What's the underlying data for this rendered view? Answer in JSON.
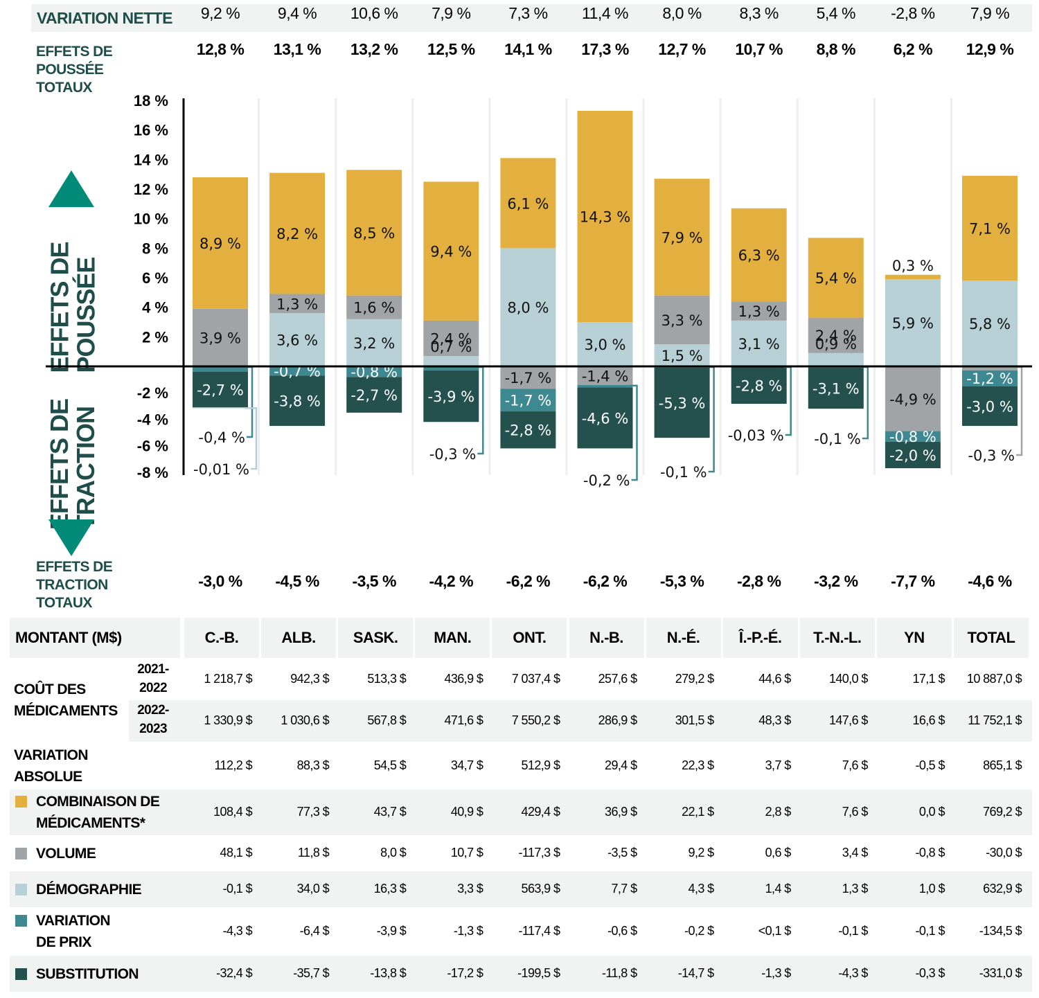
{
  "colors": {
    "drug_mix": "#e3b040",
    "volume": "#a0a4a6",
    "demographics": "#b7d0d6",
    "price_change": "#3e8891",
    "substitution": "#24514e",
    "label_dark_green": "#1f4d4a",
    "arrow_teal": "#008a77",
    "row_shade": "#f1f3f3"
  },
  "header": {
    "net_change_label": "VARIATION NETTE",
    "push_totals_label_lines": [
      "EFFETS DE",
      "POUSSÉE",
      "TOTAUX"
    ],
    "pull_totals_label_lines": [
      "EFFETS DE",
      "TRACTION",
      "TOTAUX"
    ],
    "push_axis_label_lines": [
      "EFFETS DE",
      "POUSSÉE"
    ],
    "pull_axis_label_lines": [
      "EFFETS DE",
      "TRACTION"
    ]
  },
  "jurisdictions": [
    "C.-B.",
    "ALB.",
    "SASK.",
    "MAN.",
    "ONT.",
    "N.-B.",
    "N.-É.",
    "Î.-P.-É.",
    "T.-N.-L.",
    "YN",
    "TOTAL"
  ],
  "net_change": [
    "9,2 %",
    "9,4 %",
    "10,6 %",
    "7,9 %",
    "7,3 %",
    "11,4 %",
    "8,0 %",
    "8,3 %",
    "5,4 %",
    "-2,8 %",
    "7,9 %"
  ],
  "push_totals": [
    "12,8 %",
    "13,1 %",
    "13,2 %",
    "12,5 %",
    "14,1 %",
    "17,3 %",
    "12,7 %",
    "10,7 %",
    "8,8 %",
    "6,2 %",
    "12,9 %"
  ],
  "pull_totals": [
    "-3,0 %",
    "-4,5 %",
    "-3,5 %",
    "-4,2 %",
    "-6,2 %",
    "-6,2 %",
    "-5,3 %",
    "-2,8 %",
    "-3,2 %",
    "-7,7 %",
    "-4,6 %"
  ],
  "chart_data": {
    "type": "bar",
    "stacked": true,
    "title": "",
    "xlabel": "",
    "ylabel": "",
    "ylim": [
      -8,
      18
    ],
    "y_ticks": [
      18,
      16,
      14,
      12,
      10,
      8,
      6,
      4,
      2,
      -2,
      -4,
      -6,
      -8
    ],
    "y_tick_labels": [
      "18 %",
      "16 %",
      "14 %",
      "12 %",
      "10 %",
      "8 %",
      "6 %",
      "4 %",
      "2 %",
      "-2 %",
      "-4 %",
      "-6 %",
      "-8 %"
    ],
    "grid": false,
    "categories": [
      "C.-B.",
      "ALB.",
      "SASK.",
      "MAN.",
      "ONT.",
      "N.-B.",
      "N.-É.",
      "Î.-P.-É.",
      "T.-N.-L.",
      "YN",
      "TOTAL"
    ],
    "series": [
      {
        "name": "Démographie",
        "key": "demographics",
        "values": [
          -0.01,
          3.6,
          3.2,
          0.7,
          8.0,
          3.0,
          1.5,
          3.1,
          0.9,
          5.9,
          5.8
        ],
        "labels": [
          "-0,01 %",
          "3,6 %",
          "3,2 %",
          "0,7 %",
          "8,0 %",
          "3,0 %",
          "1,5 %",
          "3,1 %",
          "0,9 %",
          "5,9 %",
          "5,8 %"
        ]
      },
      {
        "name": "Volume",
        "key": "volume",
        "values": [
          3.9,
          1.3,
          1.6,
          2.4,
          -1.7,
          -1.4,
          3.3,
          1.3,
          2.4,
          -4.9,
          -0.3
        ],
        "labels": [
          "3,9 %",
          "1,3 %",
          "1,6 %",
          "2,4 %",
          "-1,7 %",
          "-1,4 %",
          "3,3 %",
          "1,3 %",
          "2,4 %",
          "-4,9 %",
          "-0,3 %"
        ]
      },
      {
        "name": "Combinaison de médicaments",
        "key": "drug_mix",
        "values": [
          8.9,
          8.2,
          8.5,
          9.4,
          6.1,
          14.3,
          7.9,
          6.3,
          5.4,
          0.3,
          7.1
        ],
        "labels": [
          "8,9 %",
          "8,2 %",
          "8,5 %",
          "9,4 %",
          "6,1 %",
          "14,3 %",
          "7,9 %",
          "6,3 %",
          "5,4 %",
          "0,3 %",
          "7,1 %"
        ]
      },
      {
        "name": "Variation de prix",
        "key": "price_change",
        "values": [
          -0.4,
          -0.7,
          -0.8,
          -0.3,
          -1.7,
          -0.2,
          -0.1,
          -0.03,
          -0.1,
          -0.8,
          -1.2
        ],
        "labels": [
          "-0,4 %",
          "-0,7 %",
          "-0,8 %",
          "-0,3 %",
          "-1,7 %",
          "-0,2 %",
          "-0,1 %",
          "-0,03 %",
          "-0,1 %",
          "-0,8 %",
          "-1,2 %"
        ]
      },
      {
        "name": "Substitution",
        "key": "substitution",
        "values": [
          -2.7,
          -3.8,
          -2.7,
          -3.9,
          -2.8,
          -4.6,
          -5.3,
          -2.8,
          -3.1,
          -2.0,
          -3.0
        ],
        "labels": [
          "-2,7 %",
          "-3,8 %",
          "-2,7 %",
          "-3,9 %",
          "-2,8 %",
          "-4,6 %",
          "-5,3 %",
          "-2,8 %",
          "-3,1 %",
          "-2,0 %",
          "-3,0 %"
        ]
      }
    ],
    "callouts": [
      {
        "category": "C.-B.",
        "series": "price_change",
        "label": "-0,4 %"
      },
      {
        "category": "C.-B.",
        "series": "demographics",
        "label": "-0,01 %"
      },
      {
        "category": "MAN.",
        "series": "price_change",
        "label": "-0,3 %"
      },
      {
        "category": "N.-B.",
        "series": "price_change",
        "label": "-0,2 %"
      },
      {
        "category": "N.-É.",
        "series": "price_change",
        "label": "-0,1 %"
      },
      {
        "category": "Î.-P.-É.",
        "series": "price_change",
        "label": "-0,03 %"
      },
      {
        "category": "T.-N.-L.",
        "series": "price_change",
        "label": "-0,1 %"
      },
      {
        "category": "TOTAL",
        "series": "volume",
        "label": "-0,3 %"
      }
    ],
    "legend": [
      {
        "key": "drug_mix",
        "label": "Combinaison de médicaments*"
      },
      {
        "key": "volume",
        "label": "Volume"
      },
      {
        "key": "demographics",
        "label": "Démographie"
      },
      {
        "key": "price_change",
        "label": "Variation de prix"
      },
      {
        "key": "substitution",
        "label": "Substitution"
      }
    ],
    "legend_position": "bottom (in table)"
  },
  "table": {
    "corner_label": "MONTANT (M$)",
    "columns": [
      "C.-B.",
      "ALB.",
      "SASK.",
      "MAN.",
      "ONT.",
      "N.-B.",
      "N.-É.",
      "Î.-P.-É.",
      "T.-N.-L.",
      "YN",
      "TOTAL"
    ],
    "drug_cost_label_lines": [
      "COÛT DES",
      "MÉDICAMENTS"
    ],
    "rows": [
      {
        "key": "cost_2122",
        "year_lines": [
          "2021-",
          "2022"
        ],
        "values": [
          "1 218,7 $",
          "942,3 $",
          "513,3 $",
          "436,9 $",
          "7 037,4 $",
          "257,6 $",
          "279,2 $",
          "44,6 $",
          "140,0 $",
          "17,1 $",
          "10 887,0 $"
        ]
      },
      {
        "key": "cost_2223",
        "year_lines": [
          "2022-",
          "2023"
        ],
        "values": [
          "1 330,9 $",
          "1 030,6 $",
          "567,8 $",
          "471,6 $",
          "7 550,2 $",
          "286,9 $",
          "301,5 $",
          "48,3 $",
          "147,6 $",
          "16,6 $",
          "11 752,1 $"
        ]
      },
      {
        "key": "abs_change",
        "label_lines": [
          "VARIATION",
          "ABSOLUE"
        ],
        "values": [
          "112,2 $",
          "88,3 $",
          "54,5 $",
          "34,7 $",
          "512,9 $",
          "29,4 $",
          "22,3 $",
          "3,7 $",
          "7,6 $",
          "-0,5 $",
          "865,1 $"
        ]
      },
      {
        "key": "drug_mix",
        "label_lines": [
          "COMBINAISON DE",
          "MÉDICAMENTS*"
        ],
        "values": [
          "108,4 $",
          "77,3 $",
          "43,7 $",
          "40,9 $",
          "429,4 $",
          "36,9 $",
          "22,1 $",
          "2,8 $",
          "7,6 $",
          "0,0 $",
          "769,2 $"
        ]
      },
      {
        "key": "volume",
        "label_lines": [
          "VOLUME"
        ],
        "values": [
          "48,1 $",
          "11,8 $",
          "8,0 $",
          "10,7 $",
          "-117,3 $",
          "-3,5 $",
          "9,2 $",
          "0,6 $",
          "3,4 $",
          "-0,8 $",
          "-30,0 $"
        ]
      },
      {
        "key": "demographics",
        "label_lines": [
          "DÉMOGRAPHIE"
        ],
        "values": [
          "-0,1 $",
          "34,0 $",
          "16,3 $",
          "3,3 $",
          "563,9 $",
          "7,7 $",
          "4,3 $",
          "1,4 $",
          "1,3 $",
          "1,0 $",
          "632,9 $"
        ]
      },
      {
        "key": "price_change",
        "label_lines": [
          "VARIATION",
          "DE PRIX"
        ],
        "values": [
          "-4,3 $",
          "-6,4 $",
          "-3,9 $",
          "-1,3 $",
          "-117,4 $",
          "-0,6 $",
          "-0,2 $",
          "<0,1 $",
          "-0,1 $",
          "-0,1 $",
          "-134,5 $"
        ]
      },
      {
        "key": "substitution",
        "label_lines": [
          "SUBSTITUTION"
        ],
        "values": [
          "-32,4 $",
          "-35,7 $",
          "-13,8 $",
          "-17,2 $",
          "-199,5 $",
          "-11,8 $",
          "-14,7 $",
          "-1,3 $",
          "-4,3 $",
          "-0,3 $",
          "-331,0 $"
        ]
      }
    ]
  }
}
